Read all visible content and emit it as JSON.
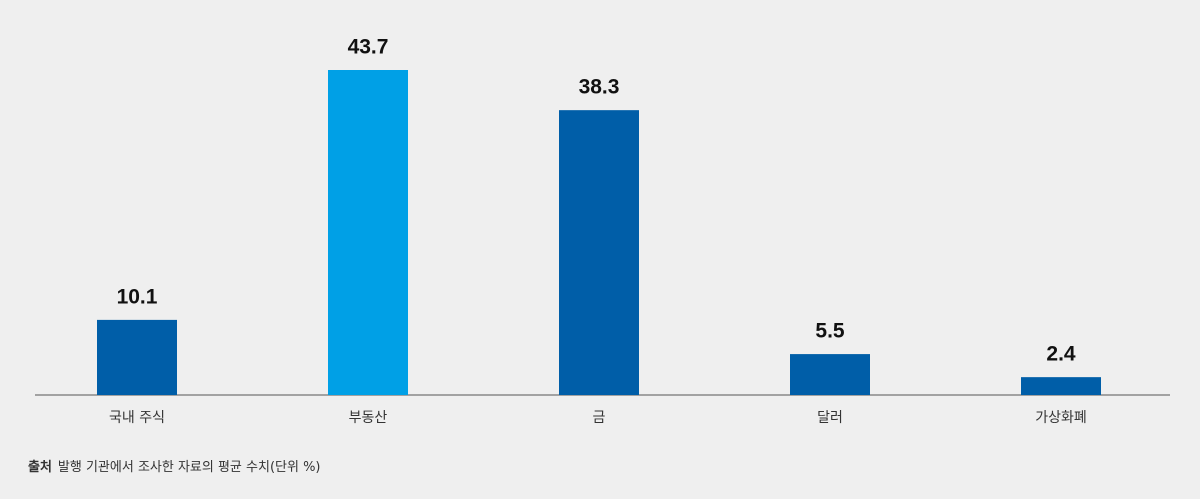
{
  "chart_data": {
    "type": "bar",
    "categories": [
      "국내 주식",
      "부동산",
      "금",
      "달러",
      "가상화폐"
    ],
    "values": [
      10.1,
      43.7,
      38.3,
      5.5,
      2.4
    ],
    "colors": [
      "#005ea8",
      "#00a0e6",
      "#005ea8",
      "#005ea8",
      "#005ea8"
    ],
    "source_label": "출처",
    "source": "발행 기관에서 조사한 자료의 평균 수치(단위 %)"
  }
}
